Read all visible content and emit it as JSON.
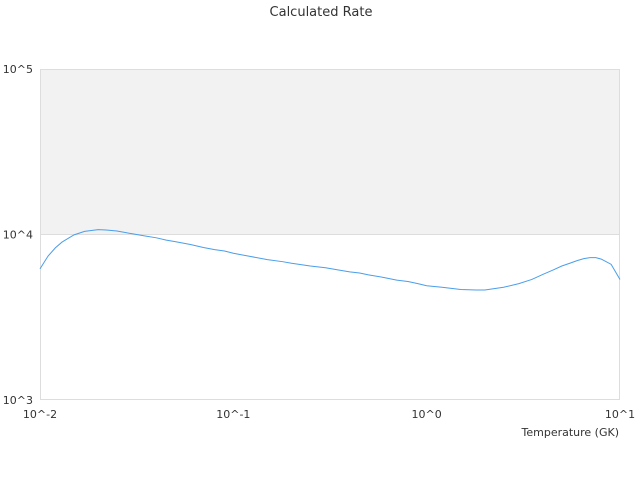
{
  "chart_data": {
    "type": "line",
    "title": "Calculated Rate",
    "xlabel": "Temperature (GK)",
    "ylabel": "",
    "x_scale": "log",
    "y_scale": "log",
    "xlim": [
      0.01,
      10
    ],
    "ylim": [
      1000,
      100000
    ],
    "x_ticks": [
      "10^-2",
      "10^-1",
      "10^0",
      "10^1"
    ],
    "y_ticks": [
      "10^3",
      "10^4",
      "10^5"
    ],
    "shaded_y_band": [
      10000,
      100000
    ],
    "grid": false,
    "legend": "none",
    "colors": {
      "line": "#4a9eea",
      "band": "#f2f2f2",
      "border": "#dddddd"
    },
    "series": [
      {
        "x": [
          0.01,
          0.011,
          0.012,
          0.013,
          0.015,
          0.017,
          0.02,
          0.022,
          0.025,
          0.03,
          0.035,
          0.04,
          0.045,
          0.05,
          0.06,
          0.07,
          0.08,
          0.09,
          0.1,
          0.12,
          0.15,
          0.18,
          0.2,
          0.25,
          0.3,
          0.35,
          0.4,
          0.45,
          0.5,
          0.6,
          0.7,
          0.8,
          0.9,
          1.0,
          1.2,
          1.5,
          1.8,
          2.0,
          2.5,
          3.0,
          3.5,
          4.0,
          4.5,
          5.0,
          5.5,
          6.0,
          6.5,
          7.0,
          7.5,
          8.0,
          9.0,
          10.0
        ],
        "y": [
          6200,
          7400,
          8300,
          9000,
          9950,
          10450,
          10700,
          10650,
          10500,
          10100,
          9800,
          9550,
          9250,
          9050,
          8700,
          8350,
          8100,
          7950,
          7700,
          7400,
          7050,
          6850,
          6700,
          6450,
          6300,
          6100,
          5950,
          5850,
          5700,
          5500,
          5300,
          5200,
          5050,
          4900,
          4800,
          4650,
          4620,
          4620,
          4800,
          5050,
          5350,
          5750,
          6100,
          6450,
          6700,
          6950,
          7150,
          7250,
          7250,
          7100,
          6600,
          5350
        ]
      }
    ]
  }
}
